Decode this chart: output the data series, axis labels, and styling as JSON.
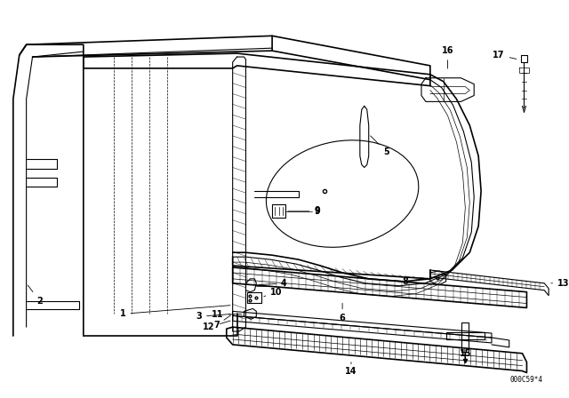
{
  "bg_color": "#ffffff",
  "line_color": "#000000",
  "fig_width": 6.4,
  "fig_height": 4.48,
  "dpi": 100,
  "catalog_number": "000C59*4"
}
